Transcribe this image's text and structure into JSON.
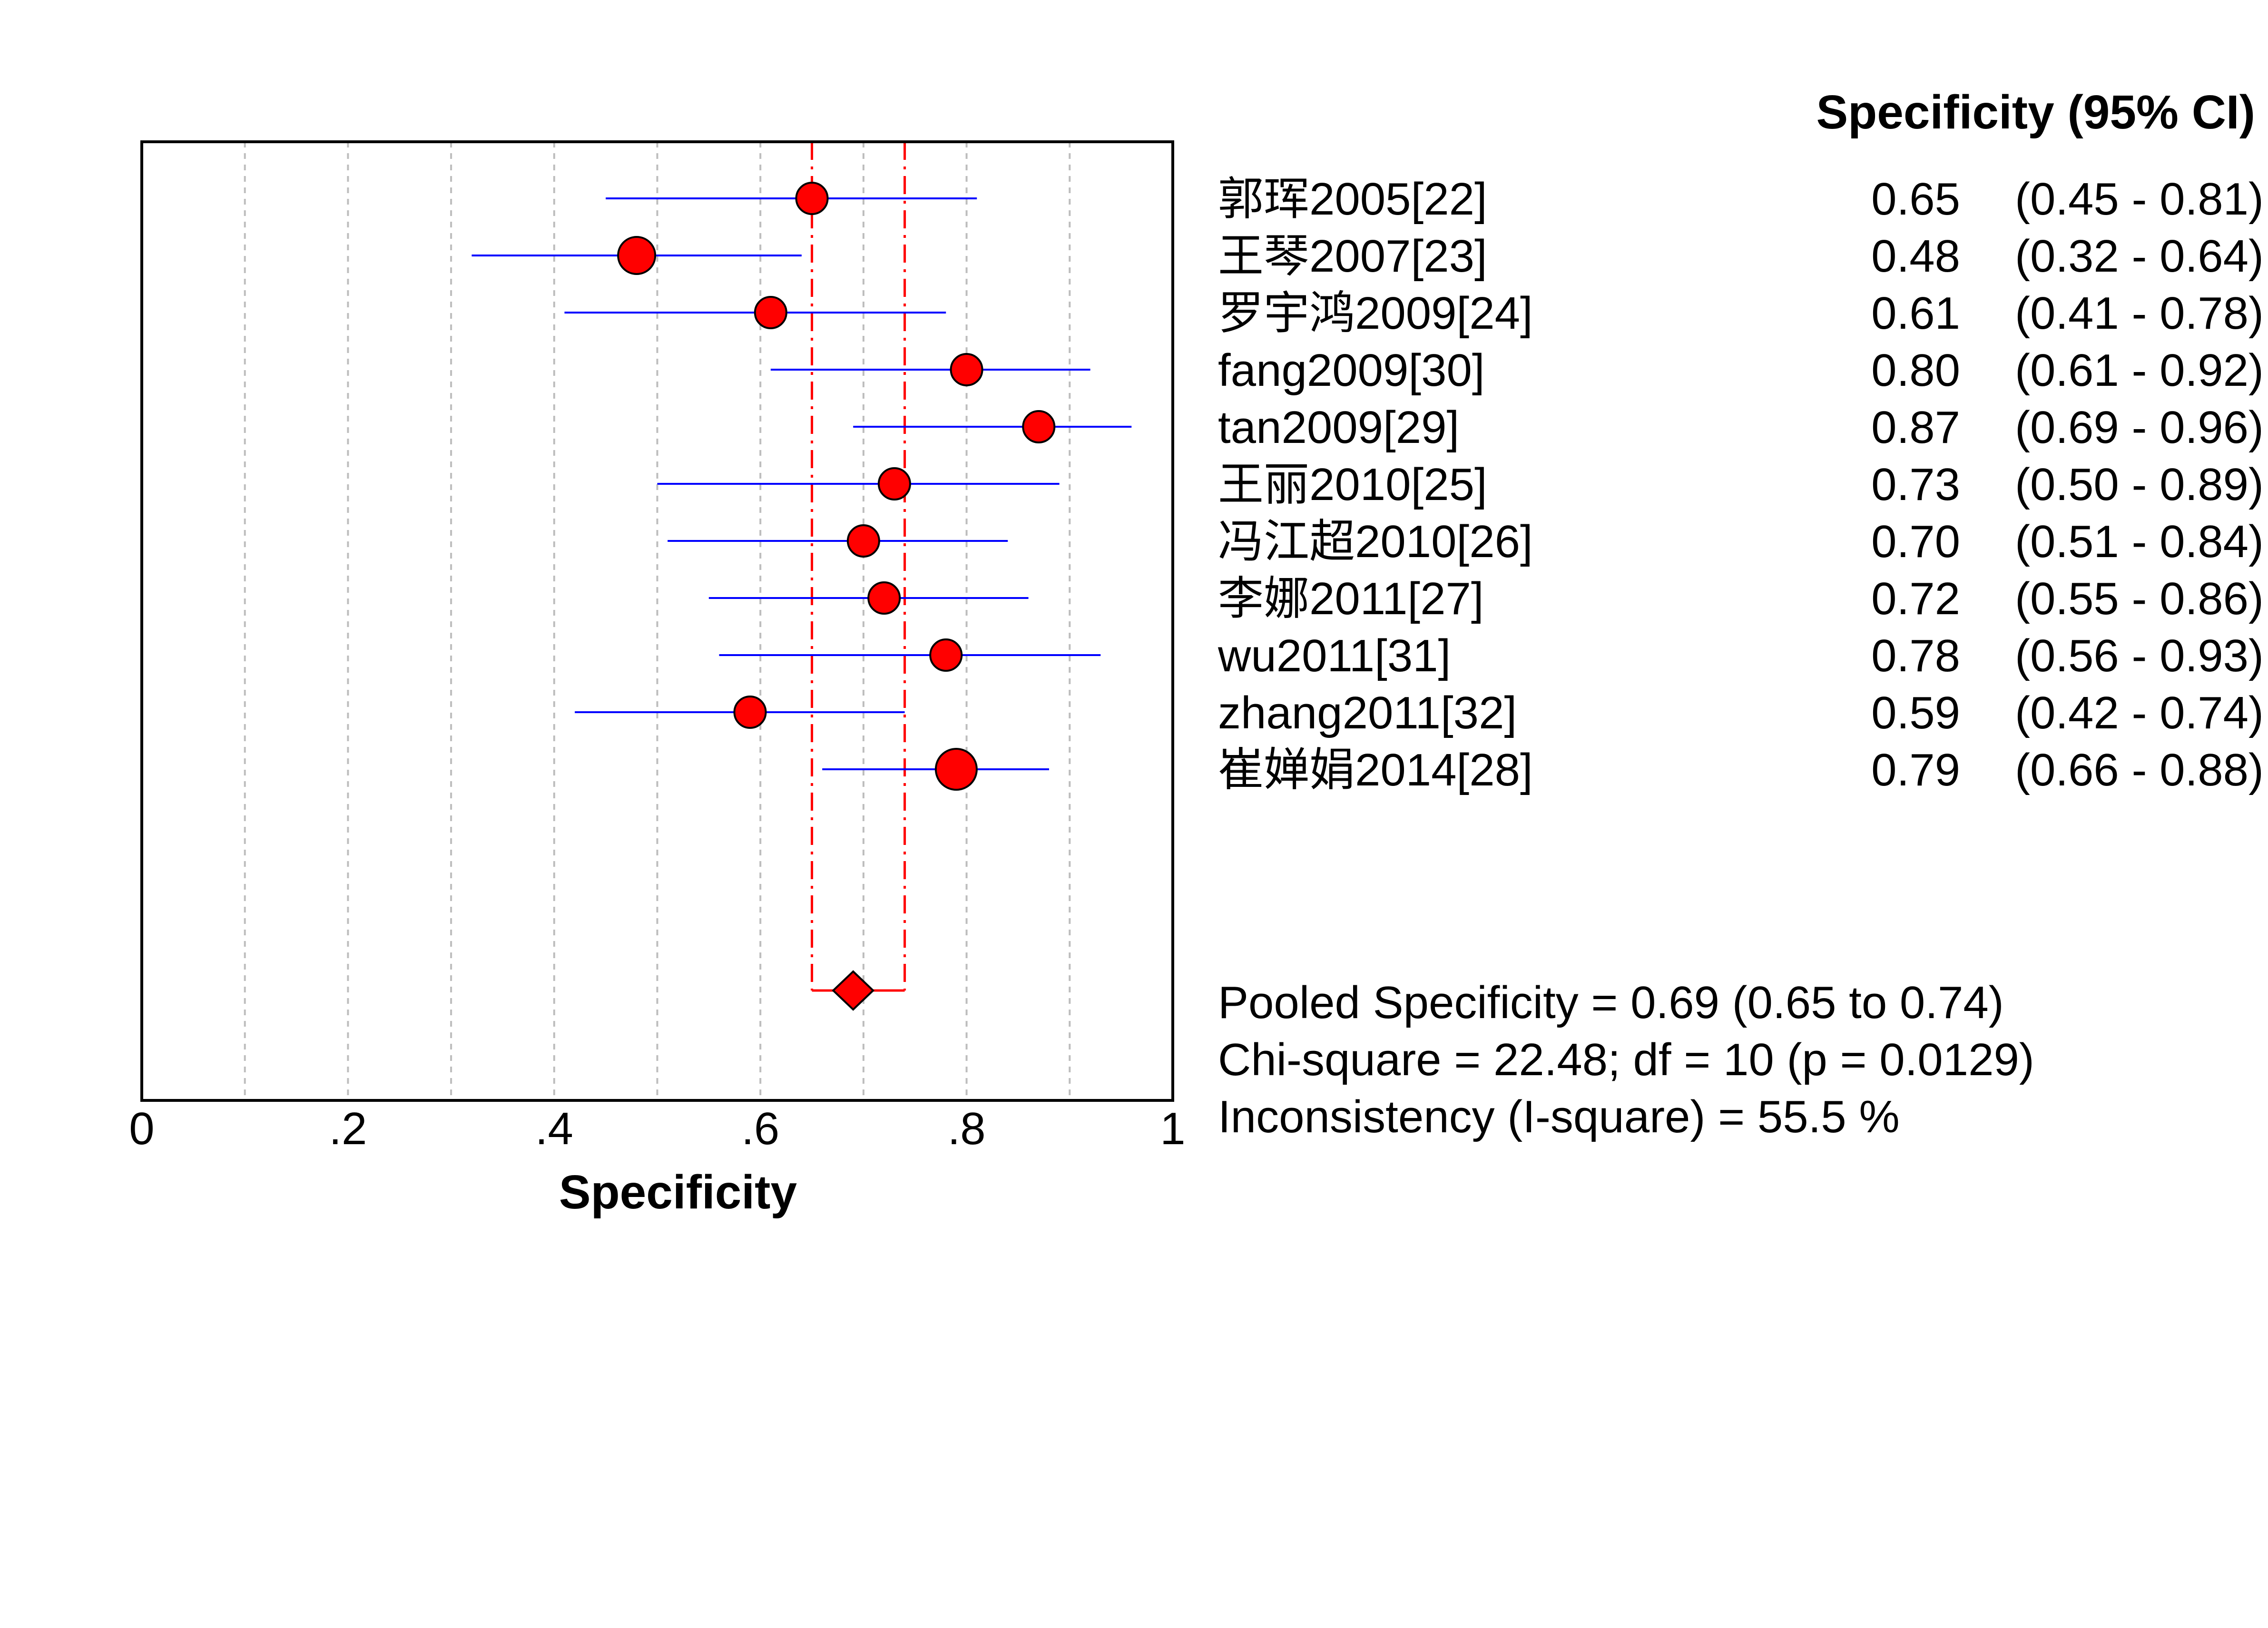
{
  "chart_data": {
    "type": "forest",
    "xlabel": "Specificity",
    "xlim": [
      0,
      1
    ],
    "xticks": [
      0,
      0.2,
      0.4,
      0.6,
      0.8,
      1
    ],
    "xtick_labels": [
      "0",
      ".2",
      ".4",
      ".6",
      ".8",
      "1"
    ],
    "vertical_gridlines": [
      0.1,
      0.2,
      0.3,
      0.4,
      0.5,
      0.6,
      0.7,
      0.8,
      0.9
    ],
    "column_header": "Specificity (95% CI)",
    "studies": [
      {
        "label": "郭珲2005[22]",
        "estimate": 0.65,
        "ci_low": 0.45,
        "ci_high": 0.81,
        "estimate_text": "0.65",
        "ci_text": "(0.45 - 0.81)"
      },
      {
        "label": "王琴2007[23]",
        "estimate": 0.48,
        "ci_low": 0.32,
        "ci_high": 0.64,
        "estimate_text": "0.48",
        "ci_text": "(0.32 - 0.64)"
      },
      {
        "label": "罗宇鸿2009[24]",
        "estimate": 0.61,
        "ci_low": 0.41,
        "ci_high": 0.78,
        "estimate_text": "0.61",
        "ci_text": "(0.41 - 0.78)"
      },
      {
        "label": "fang2009[30]",
        "estimate": 0.8,
        "ci_low": 0.61,
        "ci_high": 0.92,
        "estimate_text": "0.80",
        "ci_text": "(0.61 - 0.92)"
      },
      {
        "label": "tan2009[29]",
        "estimate": 0.87,
        "ci_low": 0.69,
        "ci_high": 0.96,
        "estimate_text": "0.87",
        "ci_text": "(0.69 - 0.96)"
      },
      {
        "label": "王丽2010[25]",
        "estimate": 0.73,
        "ci_low": 0.5,
        "ci_high": 0.89,
        "estimate_text": "0.73",
        "ci_text": "(0.50 - 0.89)"
      },
      {
        "label": "冯江超2010[26]",
        "estimate": 0.7,
        "ci_low": 0.51,
        "ci_high": 0.84,
        "estimate_text": "0.70",
        "ci_text": "(0.51 - 0.84)"
      },
      {
        "label": "李娜2011[27]",
        "estimate": 0.72,
        "ci_low": 0.55,
        "ci_high": 0.86,
        "estimate_text": "0.72",
        "ci_text": "(0.55 - 0.86)"
      },
      {
        "label": "wu2011[31]",
        "estimate": 0.78,
        "ci_low": 0.56,
        "ci_high": 0.93,
        "estimate_text": "0.78",
        "ci_text": "(0.56 - 0.93)"
      },
      {
        "label": "zhang2011[32]",
        "estimate": 0.59,
        "ci_low": 0.42,
        "ci_high": 0.74,
        "estimate_text": "0.59",
        "ci_text": "(0.42 - 0.74)"
      },
      {
        "label": "崔婵娟2014[28]",
        "estimate": 0.79,
        "ci_low": 0.66,
        "ci_high": 0.88,
        "estimate_text": "0.79",
        "ci_text": "(0.66 - 0.88)"
      }
    ],
    "pooled": {
      "estimate": 0.69,
      "ci_low": 0.65,
      "ci_high": 0.74
    },
    "stats_lines": [
      "Pooled Specificity = 0.69 (0.65 to 0.74)",
      "Chi-square = 22.48; df =  10 (p = 0.0129)",
      "Inconsistency (I-square) = 55.5 %"
    ],
    "colors": {
      "marker_fill": "#ff0000",
      "marker_stroke": "#000000",
      "ci_line": "#0000ff",
      "pooled_reference": "#ff0000",
      "gridline": "#bdbdbd",
      "frame": "#000000"
    }
  }
}
